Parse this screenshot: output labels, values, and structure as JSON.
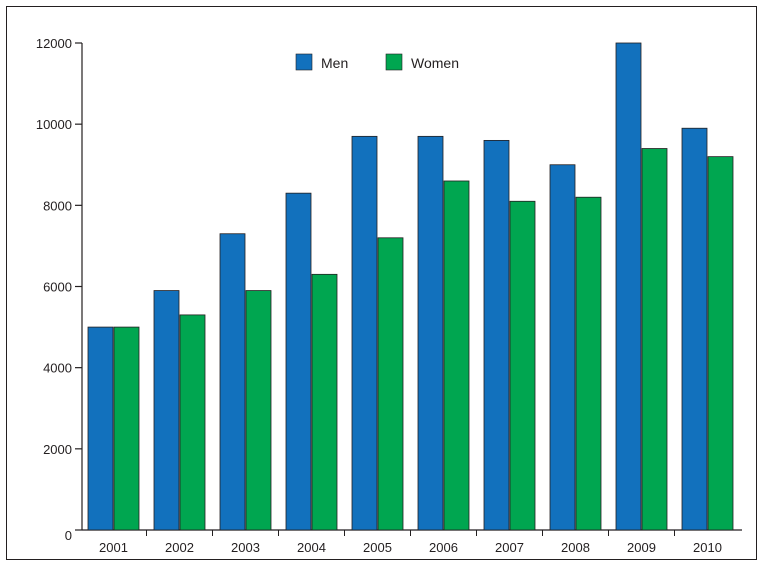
{
  "chart_data": {
    "type": "bar",
    "title": "",
    "xlabel": "",
    "ylabel": "",
    "categories": [
      "2001",
      "2002",
      "2003",
      "2004",
      "2005",
      "2006",
      "2007",
      "2008",
      "2009",
      "2010"
    ],
    "series": [
      {
        "name": "Men",
        "color": "#1271bd",
        "values": [
          5000,
          5900,
          7300,
          8300,
          9700,
          9700,
          9600,
          9000,
          12000,
          9900
        ]
      },
      {
        "name": "Women",
        "color": "#00a650",
        "values": [
          5000,
          5300,
          5900,
          6300,
          7200,
          8600,
          8100,
          8200,
          9400,
          9200
        ]
      }
    ],
    "ylim": [
      0,
      12000
    ],
    "yticks": [
      0,
      2000,
      4000,
      6000,
      8000,
      10000,
      12000
    ],
    "ytick_labels": [
      "0",
      "2000",
      "4000",
      "6000",
      "8000",
      "10000",
      "12000"
    ],
    "grid": false,
    "legend_position": "top-center"
  }
}
